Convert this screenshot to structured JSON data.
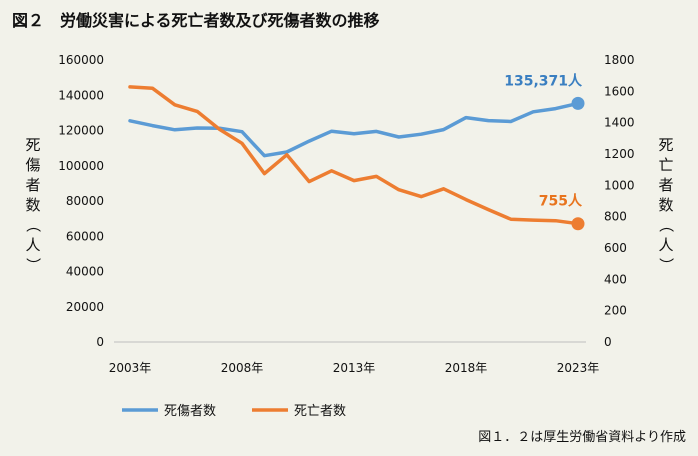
{
  "chart_data": {
    "type": "line",
    "title": "図２　労働災害による死亡者数及び死傷者数の推移",
    "x": [
      2003,
      2004,
      2005,
      2006,
      2007,
      2008,
      2009,
      2010,
      2011,
      2012,
      2013,
      2014,
      2015,
      2016,
      2017,
      2018,
      2019,
      2020,
      2021,
      2022,
      2023
    ],
    "xticks": [
      "2003年",
      "2008年",
      "2013年",
      "2018年",
      "2023年"
    ],
    "xtick_years": [
      2003,
      2008,
      2013,
      2018,
      2023
    ],
    "y_left": {
      "label": "死傷者数（人）",
      "lim": [
        0,
        160000
      ],
      "ticks": [
        "0",
        "20000",
        "40000",
        "60000",
        "80000",
        "100000",
        "120000",
        "140000",
        "160000"
      ],
      "tick_values": [
        0,
        20000,
        40000,
        60000,
        80000,
        100000,
        120000,
        140000,
        160000
      ]
    },
    "y_right": {
      "label": "死亡者数（人）",
      "lim": [
        0,
        1800
      ],
      "ticks": [
        "0",
        "200",
        "400",
        "600",
        "800",
        "1000",
        "1200",
        "1400",
        "1600",
        "1800"
      ],
      "tick_values": [
        0,
        200,
        400,
        600,
        800,
        1000,
        1200,
        1400,
        1600,
        1800
      ]
    },
    "series": [
      {
        "name": "死傷者数",
        "axis": "left",
        "color": "#5b9bd5",
        "values": [
          125500,
          122800,
          120400,
          121400,
          121300,
          119300,
          105700,
          107800,
          114000,
          119600,
          118200,
          119500,
          116300,
          117900,
          120500,
          127300,
          125600,
          125100,
          130600,
          132400,
          135371
        ]
      },
      {
        "name": "死亡者数",
        "axis": "right",
        "color": "#ed7d31",
        "values": [
          1628,
          1620,
          1514,
          1472,
          1357,
          1268,
          1075,
          1195,
          1024,
          1093,
          1030,
          1057,
          972,
          928,
          978,
          909,
          845,
          784,
          778,
          774,
          755
        ]
      }
    ],
    "annotations": [
      {
        "text": "135,371人",
        "series": 0,
        "color": "#3a7fc1"
      },
      {
        "text": "755人",
        "series": 1,
        "color": "#e8741e"
      }
    ],
    "source": "図１．２は厚生労働省資料より作成"
  }
}
